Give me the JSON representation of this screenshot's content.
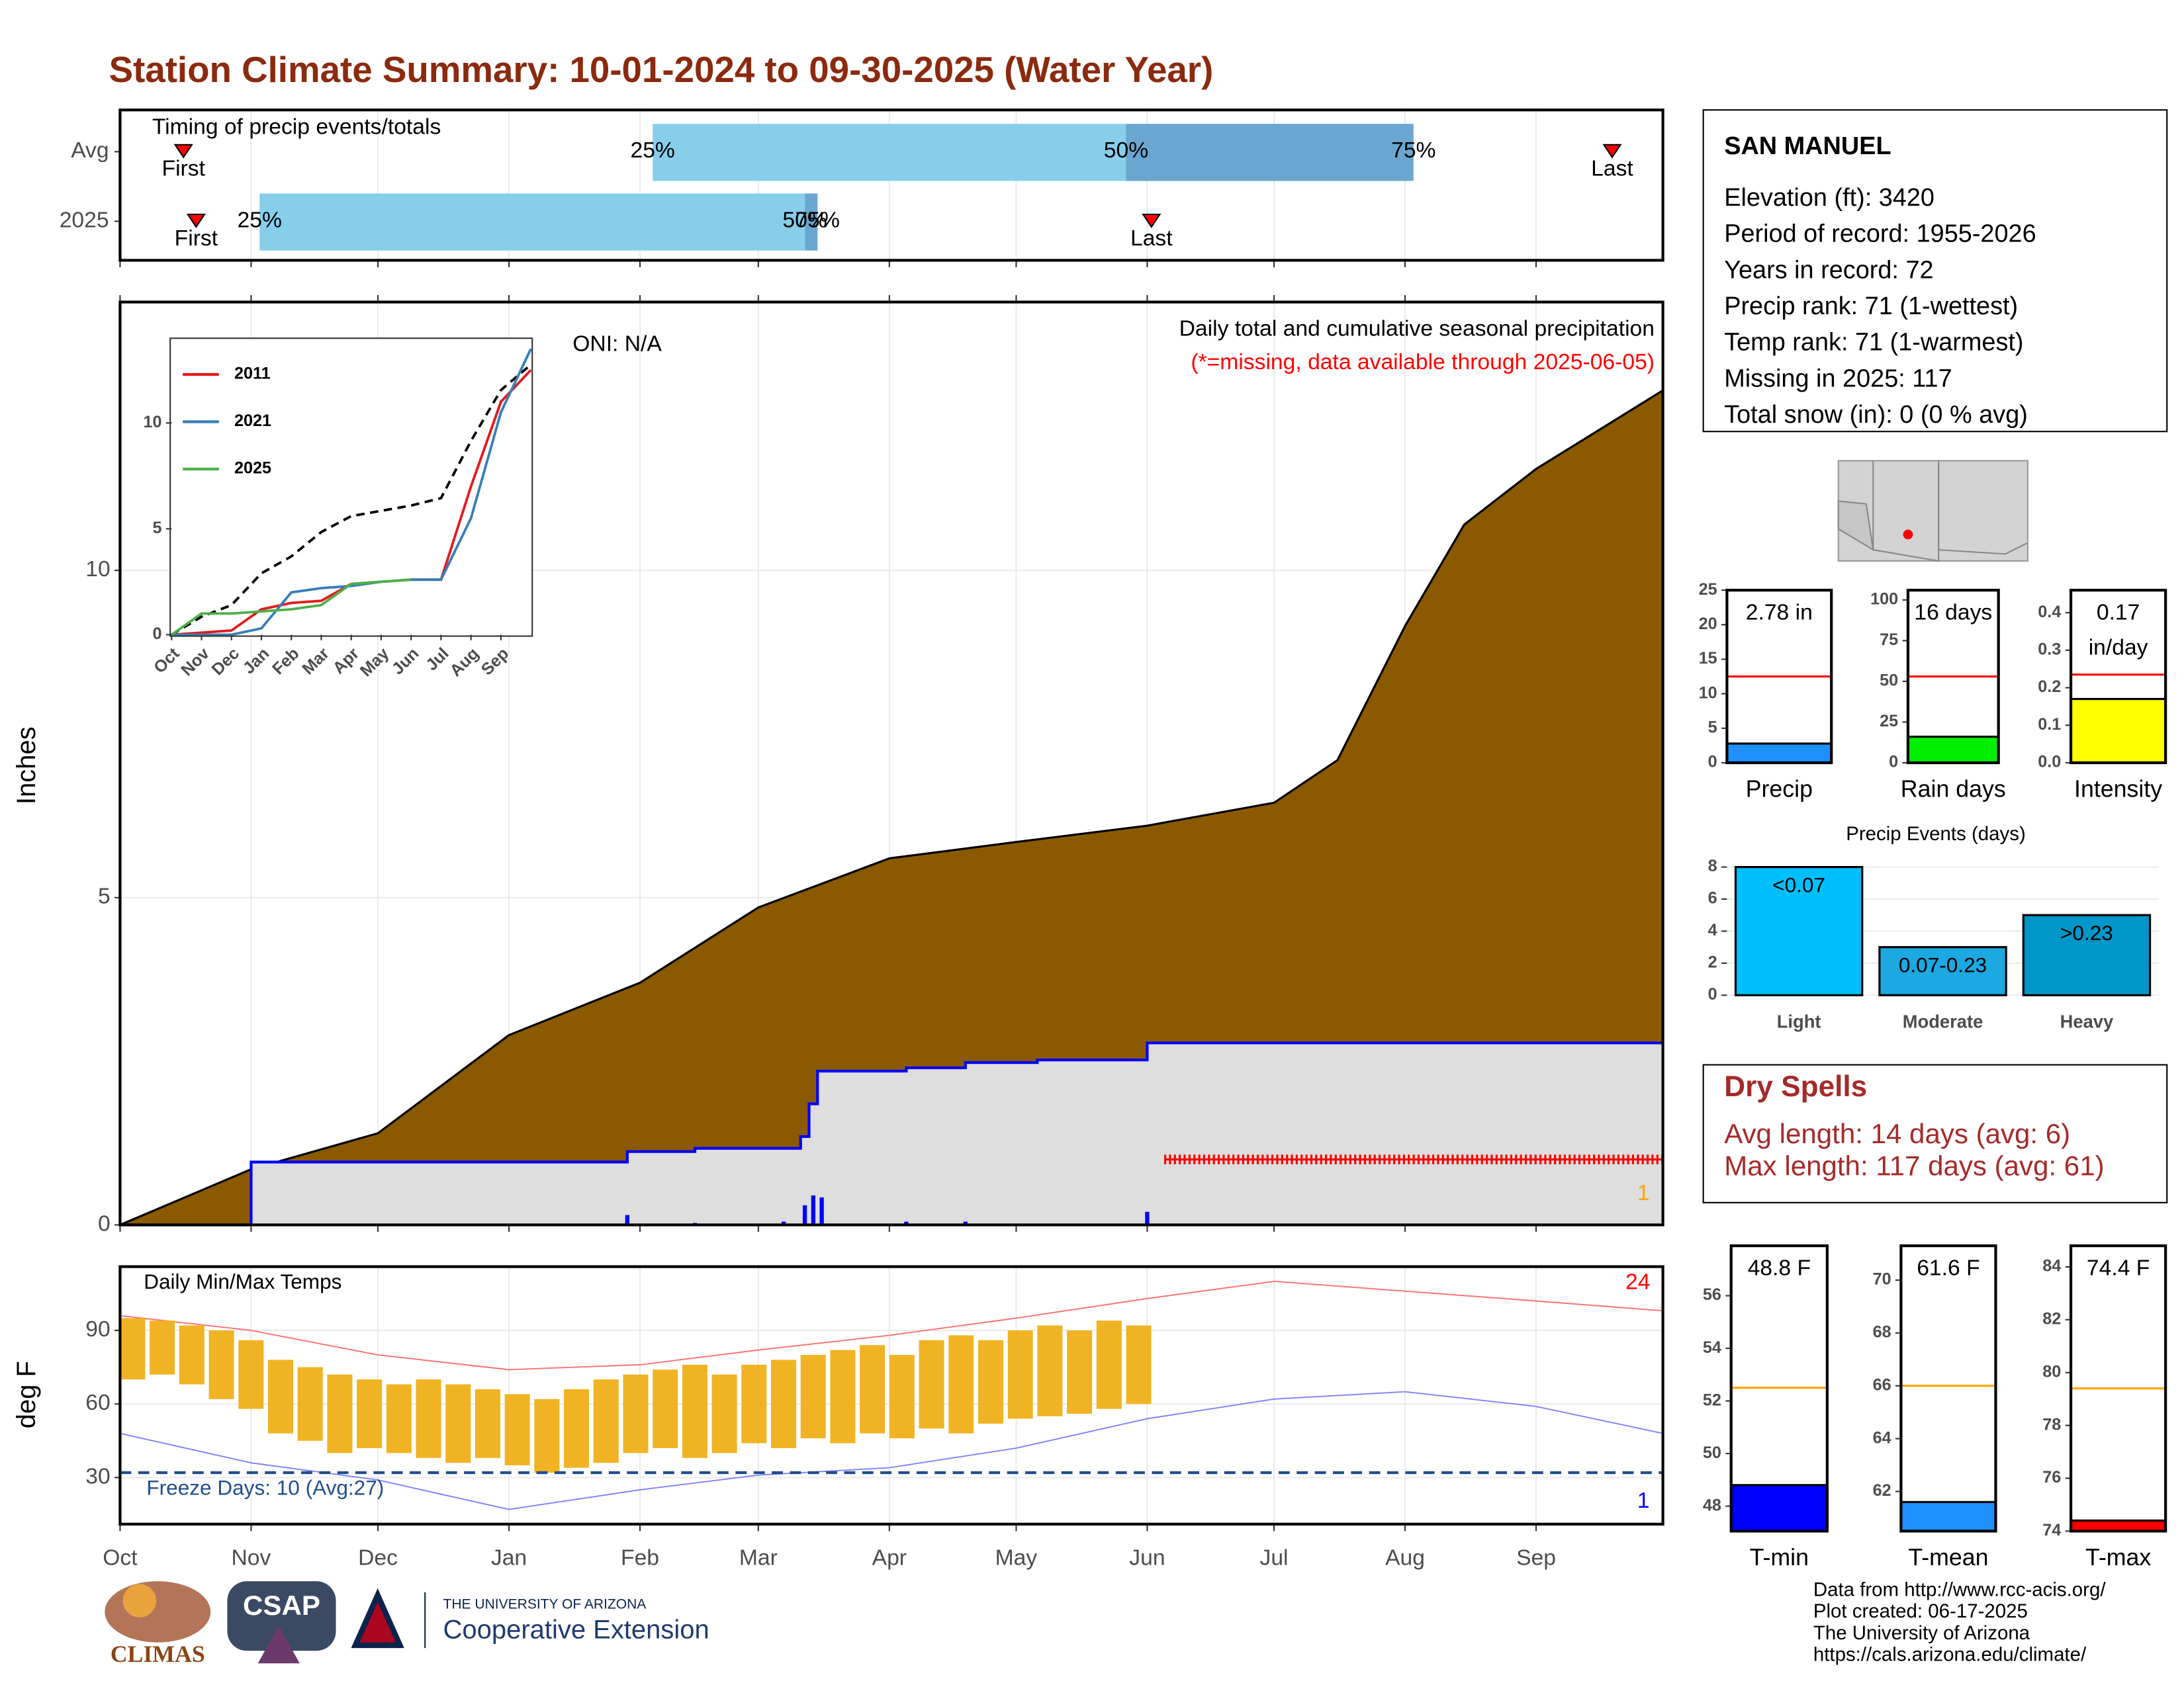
{
  "title": "Station Climate Summary: 10-01-2024 to 09-30-2025 (Water Year)",
  "station": {
    "name": "SAN MANUEL",
    "lines": [
      "Elevation (ft): 3420",
      "Period of record: 1955-2026",
      "Years in record: 72",
      "Precip rank: 71 (1-wettest)",
      "Temp rank: 71 (1-warmest)",
      "Missing in 2025: 117",
      "Total snow (in): 0 (0 % avg)"
    ]
  },
  "dry_spells": {
    "title": "Dry Spells",
    "lines": [
      "Avg length: 14 days (avg: 6)",
      "Max length: 117 days (avg: 61)"
    ]
  },
  "footer": [
    "Data from http://www.rcc-acis.org/",
    "Plot created: 06-17-2025",
    "The University of Arizona",
    "https://cals.arizona.edu/climate/"
  ],
  "logos": [
    "CLIMAS",
    "CSAP",
    "THE UNIVERSITY OF ARIZONA",
    "Cooperative Extension"
  ],
  "chart_data": [
    {
      "type": "timing",
      "title": "Timing of precip events/totals",
      "xlim": [
        0,
        365
      ],
      "xticks": [
        0,
        31,
        61,
        92,
        123,
        151,
        182,
        212,
        243,
        273,
        304,
        335
      ],
      "labels": {
        "first": "First",
        "last": "Last",
        "q25": "25%",
        "q50": "50%",
        "q75": "75%"
      },
      "colors": [
        "#87ceeb",
        "#6aa6cf"
      ],
      "rows": [
        {
          "name": "Avg",
          "first": 15,
          "q25": 126,
          "q50": 238,
          "q75": 306,
          "last": 353
        },
        {
          "name": "2025",
          "first": 18,
          "q25": 33,
          "q50": 162,
          "q75": 165,
          "last": 244
        }
      ]
    },
    {
      "type": "area",
      "title": "Daily total and cumulative seasonal precipitation",
      "subtitle": "(*=missing, data available through 2025-06-05)",
      "annotation": "ONI: N/A",
      "ylabel": "Inches",
      "xlim": [
        0,
        365
      ],
      "xticks": [
        0,
        31,
        61,
        92,
        123,
        151,
        182,
        212,
        243,
        273,
        304,
        335
      ],
      "ylim": [
        0,
        14.1
      ],
      "yticks": [
        0,
        5,
        10
      ],
      "series": [
        {
          "color": "#8b5a00",
          "x": [
            0,
            31,
            61,
            92,
            123,
            151,
            182,
            212,
            243,
            273,
            288,
            304,
            318,
            335,
            365
          ],
          "values": [
            0,
            0.85,
            1.4,
            2.9,
            3.7,
            4.85,
            5.6,
            5.85,
            6.1,
            6.45,
            7.1,
            9.15,
            10.7,
            11.55,
            12.75
          ]
        },
        {
          "color": "#0000ff",
          "fill": "#dedede",
          "x": [
            0,
            31,
            31,
            120,
            120,
            136,
            136,
            161,
            161,
            163,
            163,
            165,
            165,
            186,
            186,
            200,
            200,
            217,
            217,
            243,
            243,
            365
          ],
          "values": [
            0,
            0,
            0.96,
            0.96,
            1.12,
            1.12,
            1.17,
            1.17,
            1.35,
            1.35,
            1.85,
            1.85,
            2.35,
            2.35,
            2.4,
            2.4,
            2.48,
            2.48,
            2.52,
            2.52,
            2.78,
            2.78
          ]
        }
      ],
      "daily": {
        "color": "#0000ff",
        "x": [
          120,
          136,
          157,
          162,
          164,
          166,
          186,
          200,
          243
        ],
        "values": [
          0.15,
          0.03,
          0.05,
          0.3,
          0.45,
          0.42,
          0.05,
          0.05,
          0.2
        ]
      },
      "missing": {
        "color": "#ff0000",
        "x": [
          247,
          365
        ],
        "value": 1.0
      },
      "corner_annotation": {
        "text": "1",
        "color": "#ffa500"
      }
    },
    {
      "type": "line",
      "xlim": [
        0,
        12
      ],
      "ylim": [
        0,
        14
      ],
      "xticks": [
        {
          "value": 0,
          "label": "Oct"
        },
        {
          "value": 1,
          "label": "Nov"
        },
        {
          "value": 2,
          "label": "Dec"
        },
        {
          "value": 3,
          "label": "Jan"
        },
        {
          "value": 4,
          "label": "Feb"
        },
        {
          "value": 5,
          "label": "Mar"
        },
        {
          "value": 6,
          "label": "Apr"
        },
        {
          "value": 7,
          "label": "May"
        },
        {
          "value": 8,
          "label": "Jun"
        },
        {
          "value": 9,
          "label": "Jul"
        },
        {
          "value": 10,
          "label": "Aug"
        },
        {
          "value": 11,
          "label": "Sep"
        }
      ],
      "yticks": [
        0,
        5,
        10
      ],
      "x": [
        0,
        1,
        2,
        3,
        4,
        5,
        6,
        7,
        8,
        9,
        10,
        11,
        12
      ],
      "series": [
        {
          "name": "2011",
          "color": "#e41a1c",
          "values": [
            0,
            0.1,
            0.2,
            1.2,
            1.5,
            1.6,
            2.4,
            2.5,
            2.6,
            2.6,
            7,
            11,
            12.5
          ]
        },
        {
          "name": "2021",
          "color": "#377eb8",
          "values": [
            0,
            0,
            0,
            0.3,
            2.0,
            2.2,
            2.3,
            2.5,
            2.6,
            2.6,
            5.5,
            10.5,
            13.5
          ]
        },
        {
          "name": "2025",
          "color": "#4daf4a",
          "values": [
            0,
            1.0,
            1.0,
            1.1,
            1.2,
            1.4,
            2.4,
            2.5,
            2.6,
            null,
            null,
            null,
            null
          ]
        }
      ],
      "average": {
        "color": "#000000",
        "values": [
          0,
          0.85,
          1.4,
          2.9,
          3.7,
          4.85,
          5.6,
          5.85,
          6.1,
          6.45,
          9.15,
          11.55,
          12.75
        ]
      }
    },
    {
      "type": "range",
      "title": "Daily Min/Max Temps",
      "ylabel": "deg F",
      "xlim": [
        0,
        365
      ],
      "ylim": [
        11,
        116
      ],
      "yticks": [
        30,
        60,
        90
      ],
      "xticks": [
        {
          "value": 0,
          "label": "Oct"
        },
        {
          "value": 31,
          "label": "Nov"
        },
        {
          "value": 61,
          "label": "Dec"
        },
        {
          "value": 92,
          "label": "Jan"
        },
        {
          "value": 123,
          "label": "Feb"
        },
        {
          "value": 151,
          "label": "Mar"
        },
        {
          "value": 182,
          "label": "Apr"
        },
        {
          "value": 212,
          "label": "May"
        },
        {
          "value": 243,
          "label": "Jun"
        },
        {
          "value": 273,
          "label": "Jul"
        },
        {
          "value": 304,
          "label": "Aug"
        },
        {
          "value": 335,
          "label": "Sep"
        }
      ],
      "color": "#f0b323",
      "x": [
        0,
        7,
        14,
        21,
        28,
        35,
        42,
        49,
        56,
        63,
        70,
        77,
        84,
        91,
        98,
        105,
        112,
        119,
        126,
        133,
        140,
        147,
        154,
        161,
        168,
        175,
        182,
        189,
        196,
        203,
        210,
        217,
        224,
        231,
        238
      ],
      "lows": [
        70,
        72,
        68,
        62,
        58,
        48,
        45,
        40,
        42,
        40,
        38,
        36,
        38,
        35,
        32,
        34,
        36,
        40,
        42,
        38,
        40,
        44,
        42,
        46,
        44,
        48,
        46,
        50,
        48,
        52,
        54,
        55,
        56,
        58,
        60
      ],
      "highs": [
        95,
        94,
        92,
        90,
        86,
        78,
        75,
        72,
        70,
        68,
        70,
        68,
        66,
        64,
        62,
        66,
        70,
        72,
        74,
        76,
        72,
        76,
        78,
        80,
        82,
        84,
        80,
        86,
        88,
        86,
        90,
        92,
        90,
        94,
        92
      ],
      "normal_high": {
        "color": "#ff7070",
        "x": [
          0,
          31,
          61,
          92,
          123,
          151,
          182,
          212,
          243,
          273,
          304,
          335,
          365
        ],
        "values": [
          96,
          90,
          80,
          74,
          76,
          82,
          88,
          95,
          103,
          110,
          106,
          102,
          98
        ]
      },
      "normal_low": {
        "color": "#8080ff",
        "x": [
          0,
          31,
          61,
          92,
          123,
          151,
          182,
          212,
          243,
          273,
          304,
          335,
          365
        ],
        "values": [
          48,
          36,
          29,
          17,
          25,
          31,
          34,
          42,
          54,
          62,
          65,
          59,
          48
        ]
      },
      "freeze": {
        "value": 32,
        "color": "#1f4e8c",
        "label": "Freeze Days: 10 (Avg:27)"
      },
      "annotations": [
        {
          "text": "24",
          "color": "#ff0000"
        },
        {
          "text": "1",
          "color": "#0000ff"
        }
      ]
    },
    {
      "type": "gauge",
      "label": "Precip",
      "value": 2.78,
      "value_label": "2.78 in",
      "avg": 12.5,
      "color": "#1e90ff",
      "avg_color": "#ff0000",
      "ylim": [
        0,
        25
      ],
      "yticks": [
        0,
        5,
        10,
        15,
        20,
        25
      ]
    },
    {
      "type": "gauge",
      "label": "Rain days",
      "value": 16,
      "value_label": "16 days",
      "avg": 53,
      "color": "#00ee00",
      "avg_color": "#ff0000",
      "ylim": [
        0,
        106
      ],
      "yticks": [
        0,
        25,
        50,
        75,
        100
      ]
    },
    {
      "type": "gauge",
      "label": "Intensity",
      "value": 0.17,
      "value_label": "0.17",
      "unit": "in/day",
      "avg": 0.235,
      "color": "#ffff00",
      "avg_color": "#ff0000",
      "ylim": [
        0,
        0.46
      ],
      "yticks": [
        {
          "value": 0,
          "label": "0.0"
        },
        0.1,
        0.2,
        0.3,
        0.4
      ]
    },
    {
      "type": "bar",
      "title": "Precip Events (days)",
      "categories": [
        "Light",
        "Moderate",
        "Heavy"
      ],
      "values": [
        8,
        3,
        5
      ],
      "value_labels": [
        "<0.07",
        "0.07-0.23",
        ">0.23"
      ],
      "colors": [
        "#00bfff",
        "#1ca8e0",
        "#0096c7"
      ],
      "ylim": [
        0,
        8.6
      ],
      "yticks": [
        0,
        2,
        4,
        6,
        8
      ]
    },
    {
      "type": "gauge",
      "label": "T-min",
      "value": 48.8,
      "value_label": "48.8 F",
      "avg": 52.5,
      "color": "#0000ff",
      "avg_color": "#ffa500",
      "ylim": [
        47.05,
        57.9
      ],
      "yticks": [
        48,
        50,
        52,
        54,
        56
      ]
    },
    {
      "type": "gauge",
      "label": "T-mean",
      "value": 61.6,
      "value_label": "61.6 F",
      "avg": 66,
      "color": "#1e90ff",
      "avg_color": "#ffa500",
      "ylim": [
        60.5,
        71.3
      ],
      "yticks": [
        62,
        64,
        66,
        68,
        70
      ]
    },
    {
      "type": "gauge",
      "label": "T-max",
      "value": 74.4,
      "value_label": "74.4 F",
      "avg": 79.4,
      "color": "#ff0000",
      "avg_color": "#ffa500",
      "ylim": [
        74,
        84.8
      ],
      "yticks": [
        74,
        76,
        78,
        80,
        82,
        84
      ]
    }
  ]
}
